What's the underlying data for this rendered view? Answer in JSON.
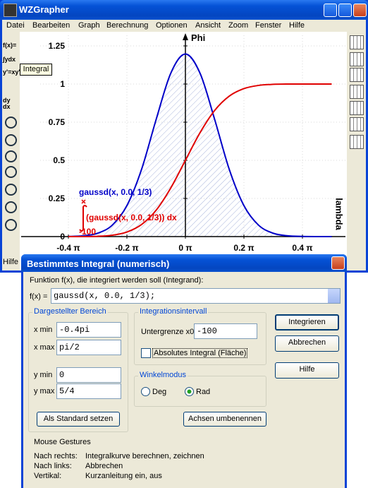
{
  "window": {
    "title": "WZGrapher",
    "menu": [
      "Datei",
      "Bearbeiten",
      "Graph",
      "Berechnung",
      "Optionen",
      "Ansicht",
      "Zoom",
      "Fenster",
      "Hilfe"
    ]
  },
  "toolbar": {
    "buttons": [
      "f(x)=",
      "∫ydx",
      "y'=xy'",
      "dy",
      "dx"
    ],
    "tooltip": "Integral",
    "help": "Hilfe"
  },
  "chart_data": {
    "type": "line",
    "x": [
      -0.4,
      -0.35,
      -0.3,
      -0.25,
      -0.2,
      -0.15,
      -0.1,
      -0.05,
      0,
      0.05,
      0.1,
      0.15,
      0.2,
      0.25,
      0.3,
      0.35,
      0.4,
      0.45,
      0.5
    ],
    "series": [
      {
        "name": "gaussd(x, 0.0, 1/3)",
        "color": "#0000c8",
        "values": [
          0.001,
          0.005,
          0.022,
          0.075,
          0.203,
          0.44,
          0.768,
          1.071,
          1.197,
          1.071,
          0.768,
          0.44,
          0.203,
          0.075,
          0.022,
          0.005,
          0.001,
          0.0,
          0.0
        ]
      },
      {
        "name": "(gaussd(x, 0.0, 1/3)) dx",
        "color": "#e00000",
        "values": [
          0.0,
          0.0,
          0.002,
          0.009,
          0.03,
          0.079,
          0.173,
          0.319,
          0.5,
          0.681,
          0.827,
          0.921,
          0.97,
          0.991,
          0.998,
          1.0,
          1.0,
          1.0,
          1.0
        ]
      }
    ],
    "integral_lower": "-100",
    "xlim": [
      -0.4,
      0.5
    ],
    "ylim": [
      0,
      1.25
    ],
    "xticks": [
      {
        "value": -0.4,
        "label": "-0.4 π"
      },
      {
        "value": -0.2,
        "label": "-0.2 π"
      },
      {
        "value": 0,
        "label": "0 π"
      },
      {
        "value": 0.2,
        "label": "0.2 π"
      },
      {
        "value": 0.4,
        "label": "0.4 π"
      }
    ],
    "yticks": [
      0,
      0.25,
      0.5,
      0.75,
      1,
      1.25
    ],
    "ylabel": "Phi",
    "xlabel": "lambda",
    "grid": true
  },
  "dialog": {
    "title": "Bestimmtes Integral (numerisch)",
    "prompt": "Funktion f(x), die integriert werden soll (Integrand):",
    "fx_label": "f(x) =",
    "fx_value": "gaussd(x, 0.0, 1/3);",
    "range": {
      "title": "Dargestellter Bereich",
      "xmin_label": "x min",
      "xmin": "-0.4pi",
      "xmax_label": "x max",
      "xmax": "pi/2",
      "ymin_label": "y min",
      "ymin": "0",
      "ymax_label": "y max",
      "ymax": "5/4",
      "button": "Als Standard setzen"
    },
    "interval": {
      "title": "Integrationsintervall",
      "lower_label": "Untergrenze x0",
      "lower": "-100",
      "absolute": "Absolutes Integral (Fläche)"
    },
    "angle": {
      "title": "Winkelmodus",
      "deg": "Deg",
      "rad": "Rad"
    },
    "rename": "Achsen umbenennen",
    "buttons": [
      "Integrieren",
      "Abbrechen",
      "Hilfe"
    ],
    "gestures": {
      "title": "Mouse Gestures",
      "rows": [
        [
          "Nach rechts:",
          "Integralkurve berechnen, zeichnen"
        ],
        [
          "Nach links:",
          "Abbrechen"
        ],
        [
          "Vertikal:",
          "Kurzanleitung ein, aus"
        ]
      ]
    }
  }
}
